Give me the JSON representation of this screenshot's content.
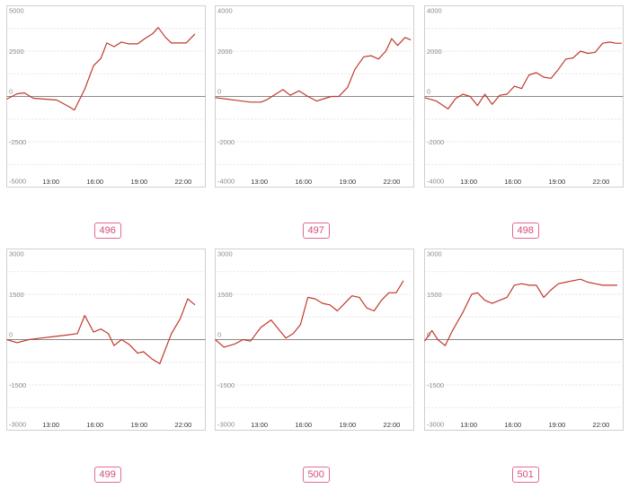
{
  "chart_data": [
    {
      "type": "line",
      "label": "496",
      "ylim": [
        -5000,
        5000
      ],
      "yticks": [
        5000,
        2500,
        0,
        -2500,
        -5000
      ],
      "ytick_labels": [
        "5000",
        "2500",
        "0",
        "-2500",
        "-5000"
      ],
      "xticks": [
        13,
        16,
        19,
        22
      ],
      "xtick_labels": [
        "13:00",
        "16:00",
        "19:00",
        "22:00"
      ],
      "xlim": [
        10,
        23.5
      ],
      "x": [
        10,
        10.7,
        11.2,
        11.8,
        12.6,
        13.4,
        14.2,
        14.6,
        15.3,
        15.9,
        16.4,
        16.8,
        17.3,
        17.8,
        18.3,
        18.9,
        19.4,
        19.9,
        20.3,
        20.8,
        21.2,
        21.7,
        22.2,
        22.8
      ],
      "y": [
        -150,
        150,
        200,
        -100,
        -150,
        -200,
        -550,
        -750,
        400,
        1700,
        2100,
        2950,
        2750,
        3000,
        2900,
        2900,
        3200,
        3450,
        3800,
        3250,
        2950,
        2950,
        2950,
        3450
      ],
      "color": "#c0392b"
    },
    {
      "type": "line",
      "label": "497",
      "ylim": [
        -4000,
        4000
      ],
      "yticks": [
        4000,
        2000,
        0,
        -2000,
        -4000
      ],
      "ytick_labels": [
        "4000",
        "2000",
        "0",
        "-2000",
        "-4000"
      ],
      "xticks": [
        13,
        16,
        19,
        22
      ],
      "xtick_labels": [
        "13:00",
        "16:00",
        "19:00",
        "22:00"
      ],
      "xlim": [
        10,
        23.5
      ],
      "x": [
        10,
        11.2,
        12.4,
        13.1,
        13.5,
        14.1,
        14.6,
        15.1,
        15.7,
        16.3,
        16.9,
        17.4,
        17.9,
        18.4,
        19.0,
        19.5,
        20.1,
        20.6,
        21.1,
        21.6,
        22.0,
        22.4,
        22.9,
        23.3
      ],
      "y": [
        -50,
        -150,
        -250,
        -250,
        -150,
        100,
        300,
        50,
        250,
        0,
        -200,
        -100,
        0,
        0,
        400,
        1200,
        1750,
        1800,
        1650,
        2000,
        2550,
        2250,
        2600,
        2500
      ],
      "color": "#c0392b"
    },
    {
      "type": "line",
      "label": "498",
      "ylim": [
        -4000,
        4000
      ],
      "yticks": [
        4000,
        2000,
        0,
        -2000,
        -4000
      ],
      "ytick_labels": [
        "4000",
        "2000",
        "0",
        "-2000",
        "-4000"
      ],
      "xticks": [
        13,
        16,
        19,
        22
      ],
      "xtick_labels": [
        "13:00",
        "16:00",
        "19:00",
        "22:00"
      ],
      "xlim": [
        10,
        23.5
      ],
      "x": [
        10,
        10.8,
        11.6,
        12.1,
        12.6,
        13.1,
        13.6,
        14.1,
        14.6,
        15.1,
        15.6,
        16.1,
        16.6,
        17.1,
        17.6,
        18.1,
        18.6,
        19.1,
        19.6,
        20.1,
        20.6,
        21.1,
        21.6,
        22.1,
        22.6,
        23.0,
        23.4
      ],
      "y": [
        -50,
        -200,
        -550,
        -100,
        100,
        0,
        -400,
        100,
        -350,
        50,
        100,
        450,
        350,
        950,
        1050,
        850,
        800,
        1200,
        1650,
        1700,
        2000,
        1900,
        1950,
        2350,
        2400,
        2350,
        2350
      ],
      "color": "#c0392b"
    },
    {
      "type": "line",
      "label": "499",
      "ylim": [
        -3000,
        3000
      ],
      "yticks": [
        3000,
        1500,
        0,
        -1500,
        -3000
      ],
      "ytick_labels": [
        "3000",
        "1500",
        "0",
        "-1500",
        "-3000"
      ],
      "xticks": [
        13,
        16,
        19,
        22
      ],
      "xtick_labels": [
        "13:00",
        "16:00",
        "19:00",
        "22:00"
      ],
      "xlim": [
        10,
        23.5
      ],
      "x": [
        10,
        10.7,
        11.5,
        12.3,
        13.2,
        14.1,
        14.8,
        15.3,
        15.9,
        16.4,
        16.9,
        17.3,
        17.8,
        18.3,
        18.9,
        19.3,
        19.9,
        20.4,
        21.2,
        21.8,
        22.3,
        22.8
      ],
      "y": [
        0,
        -100,
        0,
        50,
        100,
        150,
        200,
        800,
        250,
        350,
        200,
        -200,
        0,
        -150,
        -450,
        -400,
        -650,
        -800,
        200,
        700,
        1350,
        1150
      ],
      "color": "#c0392b"
    },
    {
      "type": "line",
      "label": "500",
      "ylim": [
        -3000,
        3000
      ],
      "yticks": [
        3000,
        1500,
        0,
        -1500,
        -3000
      ],
      "ytick_labels": [
        "3000",
        "1500",
        "0",
        "-1500",
        "-3000"
      ],
      "xticks": [
        13,
        16,
        19,
        22
      ],
      "xtick_labels": [
        "13:00",
        "16:00",
        "19:00",
        "22:00"
      ],
      "xlim": [
        10,
        23.5
      ],
      "x": [
        10,
        10.6,
        11.3,
        11.9,
        12.4,
        13.1,
        13.8,
        14.3,
        14.8,
        15.3,
        15.8,
        16.3,
        16.8,
        17.3,
        17.8,
        18.3,
        18.8,
        19.3,
        19.8,
        20.3,
        20.8,
        21.3,
        21.8,
        22.3,
        22.8
      ],
      "y": [
        0,
        -250,
        -150,
        0,
        -50,
        400,
        650,
        350,
        50,
        200,
        500,
        1400,
        1350,
        1200,
        1150,
        950,
        1200,
        1450,
        1400,
        1050,
        950,
        1300,
        1550,
        1550,
        1950
      ],
      "color": "#c0392b"
    },
    {
      "type": "line",
      "label": "501",
      "ylim": [
        -3000,
        3000
      ],
      "yticks": [
        3000,
        1500,
        0,
        -1500,
        -3000
      ],
      "ytick_labels": [
        "3000",
        "1500",
        "0",
        "-1500",
        "-3000"
      ],
      "xticks": [
        13,
        16,
        19,
        22
      ],
      "xtick_labels": [
        "13:00",
        "16:00",
        "19:00",
        "22:00"
      ],
      "xlim": [
        10,
        23.5
      ],
      "x": [
        10,
        10.5,
        10.9,
        11.4,
        11.9,
        12.6,
        13.2,
        13.6,
        14.1,
        14.6,
        15.1,
        15.6,
        16.1,
        16.6,
        17.1,
        17.6,
        18.1,
        18.6,
        19.1,
        19.6,
        20.1,
        20.6,
        21.1,
        21.6,
        22.1,
        22.6,
        23.1
      ],
      "y": [
        -50,
        300,
        0,
        -200,
        300,
        900,
        1500,
        1550,
        1300,
        1200,
        1300,
        1400,
        1800,
        1850,
        1800,
        1800,
        1400,
        1650,
        1850,
        1900,
        1950,
        2000,
        1900,
        1850,
        1800,
        1800,
        1800
      ],
      "color": "#c0392b"
    }
  ]
}
